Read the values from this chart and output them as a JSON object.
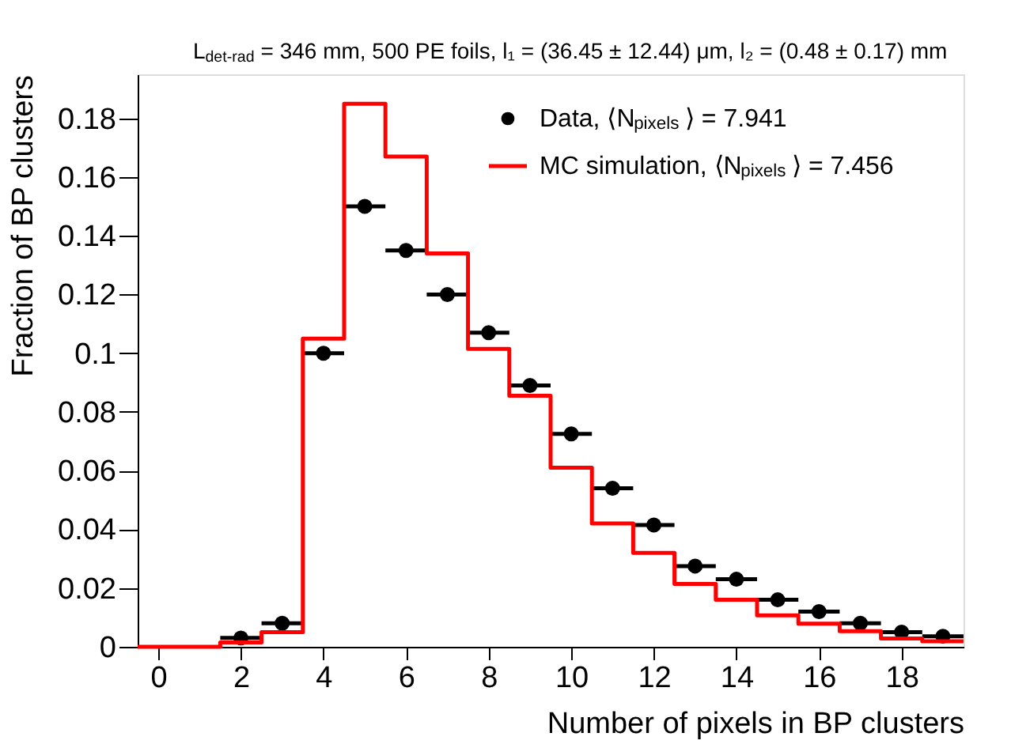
{
  "chart_data": {
    "type": "scatter",
    "title": "L$_{det-rad}$ = 346 mm, 500 PE foils, l₁ = (36.45  ± 12.44)  μm, l₂ = (0.48  ± 0.17) mm",
    "xlabel": "Number of pixels in BP clusters",
    "ylabel": "Fraction of BP clusters",
    "xlim": [
      -0.5,
      19.5
    ],
    "xticks": [
      0,
      2,
      4,
      6,
      8,
      10,
      12,
      14,
      16,
      18
    ],
    "ylim": [
      0,
      0.195
    ],
    "yticks": [
      0,
      0.02,
      0.04,
      0.06,
      0.08,
      0.1,
      0.12,
      0.14,
      0.16,
      0.18
    ],
    "legend": "top right",
    "series": [
      {
        "name": "Data,  ⟨N$_{pixels}$⟩ = 7.941",
        "marker": "circle",
        "color": "#000000",
        "x": [
          2,
          3,
          4,
          5,
          6,
          7,
          8,
          9,
          10,
          11,
          12,
          13,
          14,
          15,
          16,
          17,
          18,
          19
        ],
        "values": [
          0.003,
          0.008,
          0.1,
          0.15,
          0.135,
          0.12,
          0.107,
          0.089,
          0.0725,
          0.054,
          0.0415,
          0.0275,
          0.023,
          0.016,
          0.012,
          0.008,
          0.005,
          0.0036
        ],
        "xerrors": [
          0.5,
          0.5,
          0.5,
          0.5,
          0.5,
          0.5,
          0.5,
          0.5,
          0.5,
          0.5,
          0.5,
          0.5,
          0.5,
          0.5,
          0.5,
          0.5,
          0.5,
          0.5
        ]
      },
      {
        "name": "MC simulation,  ⟨N$_{pixels}$⟩ = 7.456",
        "type": "histogram",
        "color": "#ff0000",
        "bins": [
          -0.5,
          0.5,
          1.5,
          2.5,
          3.5,
          4.5,
          5.5,
          6.5,
          7.5,
          8.5,
          9.5,
          10.5,
          11.5,
          12.5,
          13.5,
          14.5,
          15.5,
          16.5,
          17.5,
          18.5,
          19.5
        ],
        "values": [
          0,
          0,
          0.0015,
          0.005,
          0.105,
          0.185,
          0.167,
          0.134,
          0.1015,
          0.0855,
          0.061,
          0.042,
          0.032,
          0.0214,
          0.016,
          0.0107,
          0.0079,
          0.0053,
          0.0028,
          0.0019
        ]
      }
    ]
  }
}
